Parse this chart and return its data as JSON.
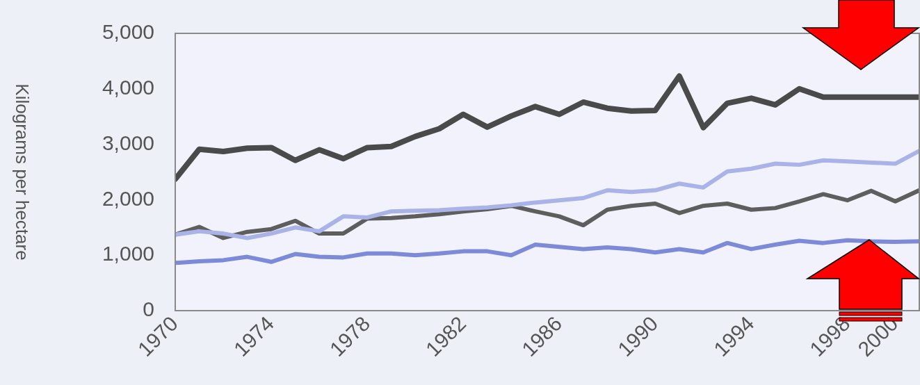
{
  "chart_data": {
    "type": "line",
    "ylabel": "Kilograms per hectare",
    "x": [
      1970,
      1971,
      1972,
      1973,
      1974,
      1975,
      1976,
      1977,
      1978,
      1979,
      1980,
      1981,
      1982,
      1983,
      1984,
      1985,
      1986,
      1987,
      1988,
      1989,
      1990,
      1991,
      1992,
      1993,
      1994,
      1995,
      1996,
      1997,
      1998,
      1999,
      2000,
      2001
    ],
    "series": [
      {
        "color": "#4a4a4a",
        "values": [
          2370,
          2910,
          2870,
          2930,
          2940,
          2710,
          2900,
          2740,
          2940,
          2960,
          3140,
          3280,
          3540,
          3310,
          3510,
          3680,
          3540,
          3760,
          3650,
          3600,
          3610,
          4230,
          3300,
          3740,
          3830,
          3710,
          4000,
          3850,
          3850,
          3850,
          3850,
          3850
        ]
      },
      {
        "color": "#a9b3e8",
        "values": [
          1370,
          1430,
          1390,
          1310,
          1390,
          1500,
          1430,
          1700,
          1680,
          1790,
          1800,
          1810,
          1840,
          1860,
          1900,
          1950,
          1990,
          2030,
          2170,
          2140,
          2170,
          2290,
          2220,
          2510,
          2560,
          2650,
          2630,
          2710,
          2690,
          2670,
          2650,
          2880
        ]
      },
      {
        "color": "#5e5e5e",
        "values": [
          1370,
          1510,
          1310,
          1420,
          1470,
          1620,
          1390,
          1390,
          1660,
          1670,
          1700,
          1740,
          1790,
          1830,
          1890,
          1790,
          1700,
          1540,
          1820,
          1890,
          1930,
          1760,
          1890,
          1930,
          1820,
          1850,
          1970,
          2100,
          1990,
          2160,
          1970,
          2170
        ]
      },
      {
        "color": "#7d8ad8",
        "values": [
          860,
          890,
          910,
          970,
          880,
          1020,
          970,
          960,
          1030,
          1030,
          1000,
          1030,
          1070,
          1070,
          1000,
          1190,
          1150,
          1110,
          1140,
          1110,
          1050,
          1110,
          1050,
          1220,
          1110,
          1190,
          1260,
          1220,
          1270,
          1250,
          1240,
          1250
        ]
      }
    ],
    "xlim": [
      1970,
      2001
    ],
    "xticks": [
      1970,
      1974,
      1978,
      1982,
      1986,
      1990,
      1994,
      1998,
      2000
    ],
    "ylim": [
      0,
      5000
    ],
    "yticks": [
      {
        "value": 0,
        "label": "0"
      },
      {
        "value": 1000,
        "label": "1,000"
      },
      {
        "value": 2000,
        "label": "2,000"
      },
      {
        "value": 3000,
        "label": "3,000"
      },
      {
        "value": 4000,
        "label": "4,000"
      },
      {
        "value": 5000,
        "label": "5,000"
      }
    ],
    "grid": false,
    "legend": false,
    "marker": "none",
    "line_style": "solid"
  }
}
